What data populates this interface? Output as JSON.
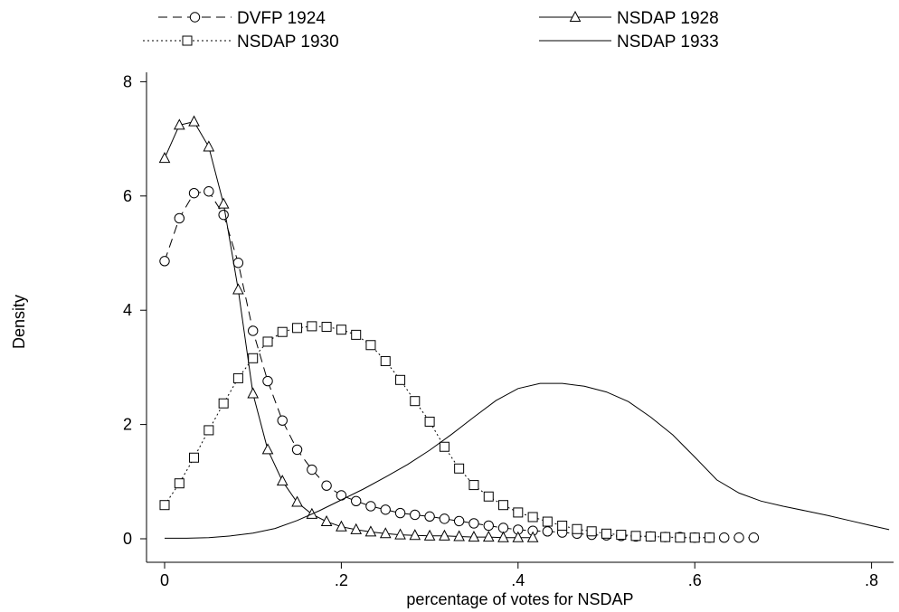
{
  "chart_data": {
    "type": "line",
    "title": "",
    "xlabel": "percentage of votes for NSDAP",
    "ylabel": "Density",
    "xlim": [
      -0.03,
      0.82
    ],
    "ylim": [
      -0.4,
      8.3
    ],
    "x_ticks": [
      0,
      0.2,
      0.4,
      0.6,
      0.8
    ],
    "x_tick_labels": [
      "0",
      ".2",
      ".4",
      ".6",
      ".8"
    ],
    "y_ticks": [
      0,
      2,
      4,
      6,
      8
    ],
    "y_tick_labels": [
      "0",
      "2",
      "4",
      "6",
      "8"
    ],
    "grid": false,
    "legend_position": "top",
    "series": [
      {
        "name": "DVFP 1924",
        "line": "dashed",
        "marker": "circle",
        "x": [
          0,
          0.0167,
          0.0333,
          0.05,
          0.0667,
          0.0833,
          0.1,
          0.1167,
          0.1333,
          0.15,
          0.1667,
          0.1833,
          0.2,
          0.2167,
          0.2333,
          0.25,
          0.2667,
          0.2833,
          0.3,
          0.3167,
          0.3333,
          0.35,
          0.3667,
          0.3833,
          0.4,
          0.4167,
          0.4333,
          0.45,
          0.4667,
          0.4833,
          0.5,
          0.5167,
          0.5333,
          0.55,
          0.5667,
          0.5833,
          0.6,
          0.6167,
          0.6333,
          0.65,
          0.6667
        ],
        "values": [
          4.86,
          5.61,
          6.05,
          6.08,
          5.67,
          4.83,
          3.64,
          2.76,
          2.07,
          1.56,
          1.21,
          0.93,
          0.76,
          0.66,
          0.57,
          0.51,
          0.45,
          0.42,
          0.39,
          0.35,
          0.31,
          0.27,
          0.23,
          0.19,
          0.16,
          0.14,
          0.13,
          0.11,
          0.09,
          0.07,
          0.06,
          0.05,
          0.04,
          0.04,
          0.03,
          0.03,
          0.02,
          0.02,
          0.02,
          0.02,
          0.02
        ]
      },
      {
        "name": "NSDAP 1928",
        "line": "solid",
        "marker": "triangle",
        "x": [
          0,
          0.0167,
          0.0333,
          0.05,
          0.0667,
          0.0833,
          0.1,
          0.1167,
          0.1333,
          0.15,
          0.1667,
          0.1833,
          0.2,
          0.2167,
          0.2333,
          0.25,
          0.2667,
          0.2833,
          0.3,
          0.3167,
          0.3333,
          0.35,
          0.3667,
          0.3833,
          0.4,
          0.4167
        ],
        "values": [
          6.66,
          7.24,
          7.3,
          6.86,
          5.86,
          4.36,
          2.54,
          1.56,
          1.01,
          0.64,
          0.43,
          0.3,
          0.21,
          0.16,
          0.12,
          0.09,
          0.07,
          0.06,
          0.05,
          0.05,
          0.04,
          0.03,
          0.03,
          0.02,
          0.02,
          0.02
        ]
      },
      {
        "name": "NSDAP 1930",
        "line": "dotted",
        "marker": "square",
        "x": [
          0,
          0.0167,
          0.0333,
          0.05,
          0.0667,
          0.0833,
          0.1,
          0.1167,
          0.1333,
          0.15,
          0.1667,
          0.1833,
          0.2,
          0.2167,
          0.2333,
          0.25,
          0.2667,
          0.2833,
          0.3,
          0.3167,
          0.3333,
          0.35,
          0.3667,
          0.3833,
          0.4,
          0.4167,
          0.4333,
          0.45,
          0.4667,
          0.4833,
          0.5,
          0.5167,
          0.5333,
          0.55,
          0.5667,
          0.5833,
          0.6,
          0.6167
        ],
        "values": [
          0.59,
          0.97,
          1.42,
          1.9,
          2.37,
          2.81,
          3.16,
          3.45,
          3.62,
          3.69,
          3.72,
          3.71,
          3.66,
          3.57,
          3.39,
          3.11,
          2.78,
          2.41,
          2.05,
          1.61,
          1.23,
          0.94,
          0.74,
          0.59,
          0.46,
          0.38,
          0.3,
          0.23,
          0.17,
          0.13,
          0.09,
          0.07,
          0.05,
          0.04,
          0.03,
          0.02,
          0.02,
          0.02
        ]
      },
      {
        "name": "NSDAP 1933",
        "line": "solid",
        "marker": "none",
        "x": [
          0,
          0.025,
          0.05,
          0.075,
          0.1,
          0.125,
          0.15,
          0.175,
          0.2,
          0.225,
          0.25,
          0.275,
          0.3,
          0.325,
          0.35,
          0.375,
          0.4,
          0.425,
          0.45,
          0.475,
          0.5,
          0.525,
          0.55,
          0.575,
          0.6,
          0.625,
          0.65,
          0.675,
          0.7,
          0.725,
          0.75,
          0.775,
          0.8,
          0.82
        ],
        "values": [
          0.01,
          0.01,
          0.02,
          0.05,
          0.1,
          0.18,
          0.32,
          0.49,
          0.68,
          0.87,
          1.08,
          1.3,
          1.55,
          1.83,
          2.13,
          2.42,
          2.63,
          2.72,
          2.72,
          2.67,
          2.57,
          2.4,
          2.13,
          1.82,
          1.43,
          1.03,
          0.8,
          0.66,
          0.57,
          0.49,
          0.41,
          0.32,
          0.23,
          0.16
        ]
      }
    ]
  }
}
